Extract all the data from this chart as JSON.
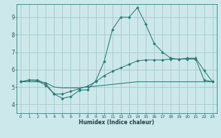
{
  "title": "",
  "xlabel": "Humidex (Indice chaleur)",
  "background_color": "#cce8ea",
  "grid_color": "#aacccc",
  "line_color": "#2e7d78",
  "xlim": [
    -0.5,
    23.5
  ],
  "ylim": [
    3.5,
    9.75
  ],
  "xticks": [
    0,
    1,
    2,
    3,
    4,
    5,
    6,
    7,
    8,
    9,
    10,
    11,
    12,
    13,
    14,
    15,
    16,
    17,
    18,
    19,
    20,
    21,
    22,
    23
  ],
  "yticks": [
    4,
    5,
    6,
    7,
    8,
    9
  ],
  "series1_x": [
    0,
    1,
    2,
    3,
    4,
    5,
    6,
    7,
    8,
    9,
    10,
    11,
    12,
    13,
    14,
    15,
    16,
    17,
    18,
    19,
    20,
    21,
    22,
    23
  ],
  "series1_y": [
    5.3,
    5.4,
    5.4,
    5.2,
    4.6,
    4.35,
    4.45,
    4.8,
    4.85,
    5.35,
    6.45,
    8.3,
    9.0,
    9.0,
    9.55,
    8.6,
    7.5,
    7.0,
    6.65,
    6.6,
    6.65,
    6.65,
    5.95,
    5.3
  ],
  "series2_x": [
    0,
    1,
    2,
    3,
    4,
    5,
    6,
    7,
    8,
    9,
    10,
    11,
    12,
    13,
    14,
    15,
    16,
    17,
    18,
    19,
    20,
    21,
    22,
    23
  ],
  "series2_y": [
    5.3,
    5.4,
    5.35,
    5.1,
    4.6,
    4.6,
    4.75,
    4.9,
    5.05,
    5.3,
    5.65,
    5.9,
    6.1,
    6.3,
    6.5,
    6.55,
    6.55,
    6.55,
    6.6,
    6.6,
    6.6,
    6.6,
    5.4,
    5.3
  ],
  "series3_x": [
    0,
    1,
    2,
    3,
    4,
    5,
    6,
    7,
    8,
    9,
    10,
    11,
    12,
    13,
    14,
    15,
    16,
    17,
    18,
    19,
    20,
    21,
    22,
    23
  ],
  "series3_y": [
    5.3,
    5.3,
    5.3,
    5.25,
    5.0,
    4.95,
    4.95,
    4.95,
    5.0,
    5.05,
    5.1,
    5.15,
    5.2,
    5.25,
    5.3,
    5.3,
    5.3,
    5.3,
    5.3,
    5.3,
    5.3,
    5.3,
    5.3,
    5.3
  ]
}
